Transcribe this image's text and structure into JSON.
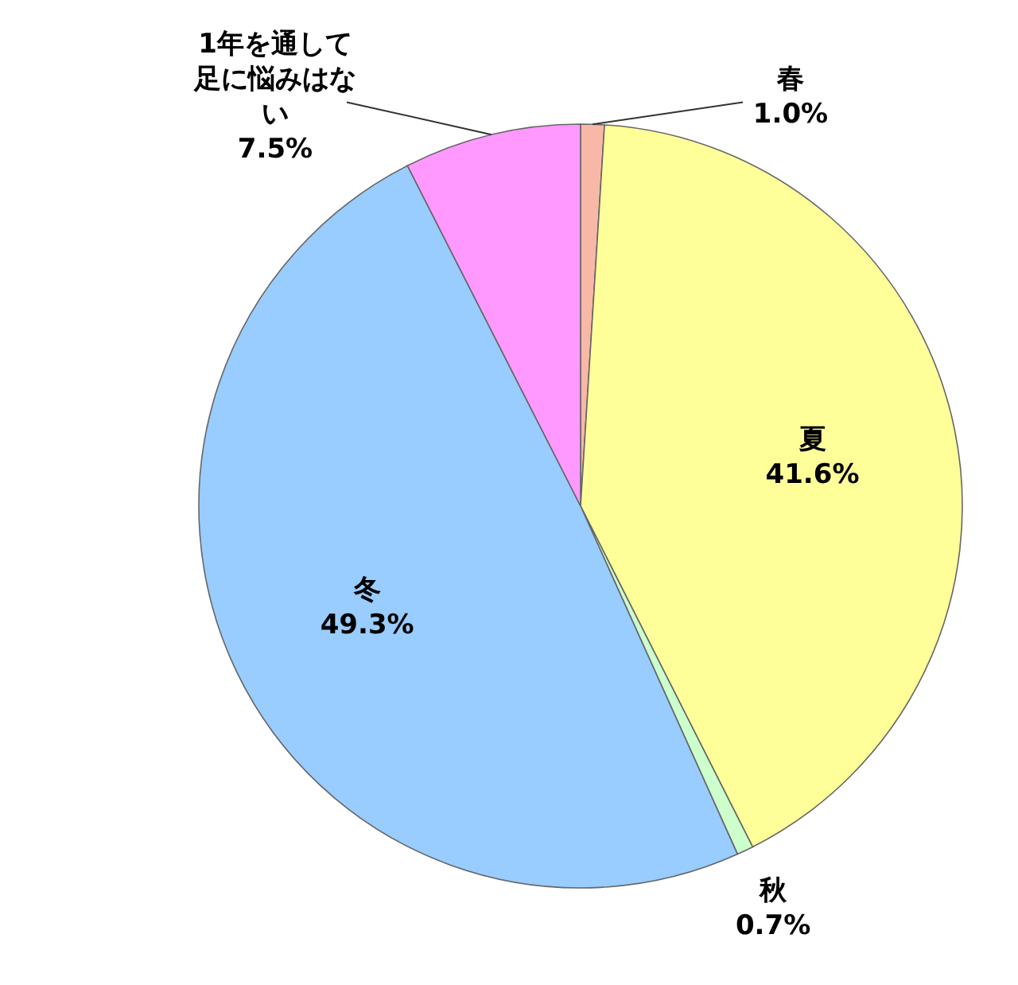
{
  "chart_data": {
    "type": "pie",
    "categories": [
      "春",
      "夏",
      "秋",
      "冬",
      "1年を通して足に悩みはない"
    ],
    "values": [
      1.0,
      41.6,
      0.7,
      49.3,
      7.5
    ],
    "value_labels": [
      "1.0%",
      "41.6%",
      "0.7%",
      "49.3%",
      "7.5%"
    ],
    "colors": [
      "#f8b8a8",
      "#ffff99",
      "#ccffcc",
      "#99ccff",
      "#ff99ff"
    ]
  }
}
